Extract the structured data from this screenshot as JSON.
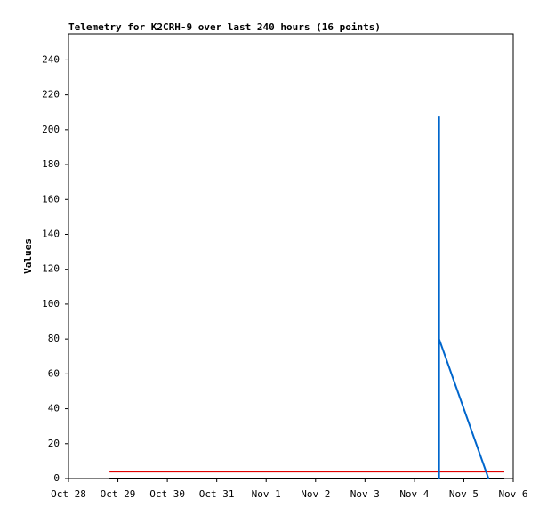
{
  "chart_data": {
    "type": "line",
    "title": "Telemetry for K2CRH-9 over last 240 hours (16 points)",
    "y_label": "Values",
    "xlim": [
      0,
      9
    ],
    "xticks": [
      {
        "value": 0,
        "label": "Oct 28"
      },
      {
        "value": 1,
        "label": "Oct 29"
      },
      {
        "value": 2,
        "label": "Oct 30"
      },
      {
        "value": 3,
        "label": "Oct 31"
      },
      {
        "value": 4,
        "label": "Nov 1"
      },
      {
        "value": 5,
        "label": "Nov 2"
      },
      {
        "value": 6,
        "label": "Nov 3"
      },
      {
        "value": 7,
        "label": "Nov 4"
      },
      {
        "value": 8,
        "label": "Nov 5"
      },
      {
        "value": 9,
        "label": "Nov 6"
      }
    ],
    "ylim": [
      0,
      255
    ],
    "yticks": [
      0,
      20,
      40,
      60,
      80,
      100,
      120,
      140,
      160,
      180,
      200,
      220,
      240
    ],
    "series": [
      {
        "color": "#000000",
        "x": [
          0.83,
          8.82
        ],
        "values": [
          0,
          0
        ]
      },
      {
        "color": "#e00000",
        "x": [
          0.83,
          8.82
        ],
        "values": [
          4,
          4
        ]
      },
      {
        "color": "#0066cc",
        "x": [
          7.5,
          7.5,
          7.5,
          8.5
        ],
        "values": [
          0,
          208,
          80,
          0
        ]
      }
    ]
  }
}
